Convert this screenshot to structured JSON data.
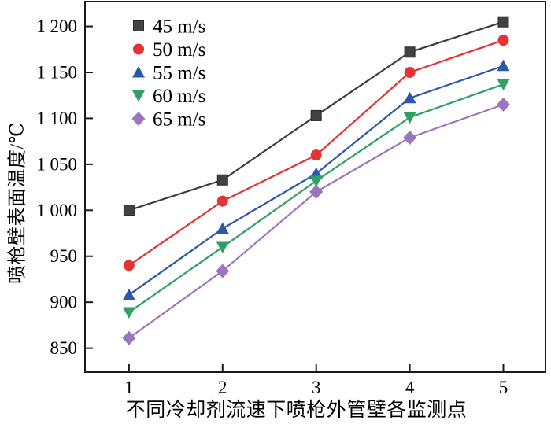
{
  "chart_data": {
    "type": "line",
    "title": "",
    "xlabel": "不同冷却剂流速下喷枪外管壁各监测点",
    "ylabel": "喷枪壁表面温度/℃",
    "x": [
      1,
      2,
      3,
      4,
      5
    ],
    "xtick_labels": [
      "1",
      "2",
      "3",
      "4",
      "5"
    ],
    "yticks": [
      850,
      900,
      950,
      1000,
      1050,
      1100,
      1150,
      1200
    ],
    "ytick_labels": [
      "850",
      "900",
      "950",
      "1 000",
      "1 050",
      "1 100",
      "1 150",
      "1 200"
    ],
    "xlim": [
      0.53,
      5.45
    ],
    "ylim": [
      824,
      1227
    ],
    "grid": false,
    "legend_position": "upper-left-inside",
    "axis_color": "#1a1a1a",
    "series": [
      {
        "name": "45 m/s",
        "marker": "square",
        "color": "#424242",
        "line_color": "#3d3d3d",
        "values": [
          1000,
          1033,
          1103,
          1172,
          1205
        ]
      },
      {
        "name": "50 m/s",
        "marker": "circle",
        "color": "#e23335",
        "line_color": "#e23335",
        "values": [
          940,
          1010,
          1060,
          1150,
          1185
        ]
      },
      {
        "name": "55 m/s",
        "marker": "triangle-up",
        "color": "#2b58a8",
        "line_color": "#2b58a8",
        "values": [
          908,
          980,
          1040,
          1122,
          1157
        ]
      },
      {
        "name": "60 m/s",
        "marker": "triangle-down",
        "color": "#2ea162",
        "line_color": "#2ea162",
        "values": [
          889,
          960,
          1032,
          1101,
          1137
        ]
      },
      {
        "name": "65 m/s",
        "marker": "diamond",
        "color": "#9c76bd",
        "line_color": "#9c76bd",
        "values": [
          861,
          934,
          1020,
          1079,
          1115
        ]
      }
    ]
  }
}
